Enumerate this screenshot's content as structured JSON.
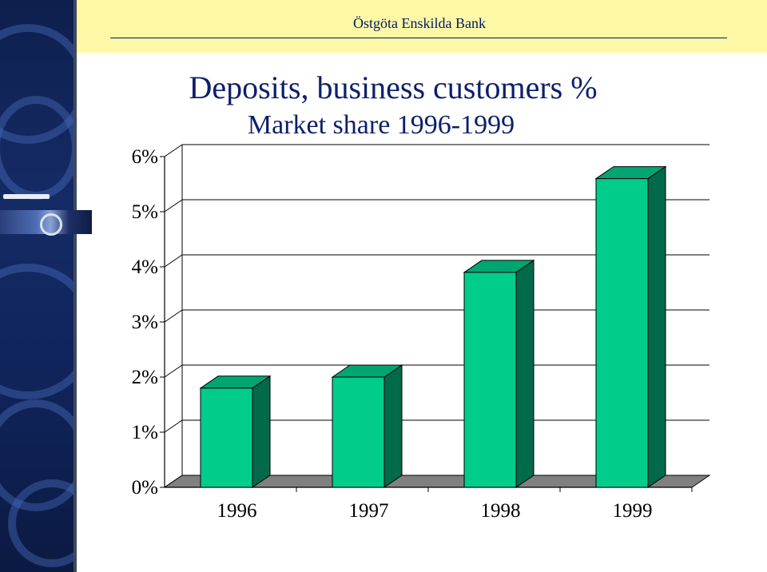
{
  "header": {
    "bank_name": "Östgöta Enskilda Bank"
  },
  "slide": {
    "title": "Deposits, business customers %",
    "subtitle": "Market share 1996-1999"
  },
  "colors": {
    "bar_front": "#00cc8c",
    "bar_top": "#00a571",
    "bar_side": "#006a4a",
    "floor": "#808080",
    "header_band": "#fdf8a6",
    "title": "#0d1f6b"
  },
  "chart_data": {
    "type": "bar",
    "title": "Deposits, business customers %",
    "subtitle": "Market share 1996-1999",
    "xlabel": "",
    "ylabel": "",
    "categories": [
      "1996",
      "1997",
      "1998",
      "1999"
    ],
    "values": [
      1.8,
      2.0,
      3.9,
      5.6
    ],
    "unit": "%",
    "ylim": [
      0,
      6
    ],
    "y_ticks": [
      "0%",
      "1%",
      "2%",
      "3%",
      "4%",
      "5%",
      "6%"
    ],
    "grid": true,
    "style": "3d-column",
    "legend": "none"
  }
}
